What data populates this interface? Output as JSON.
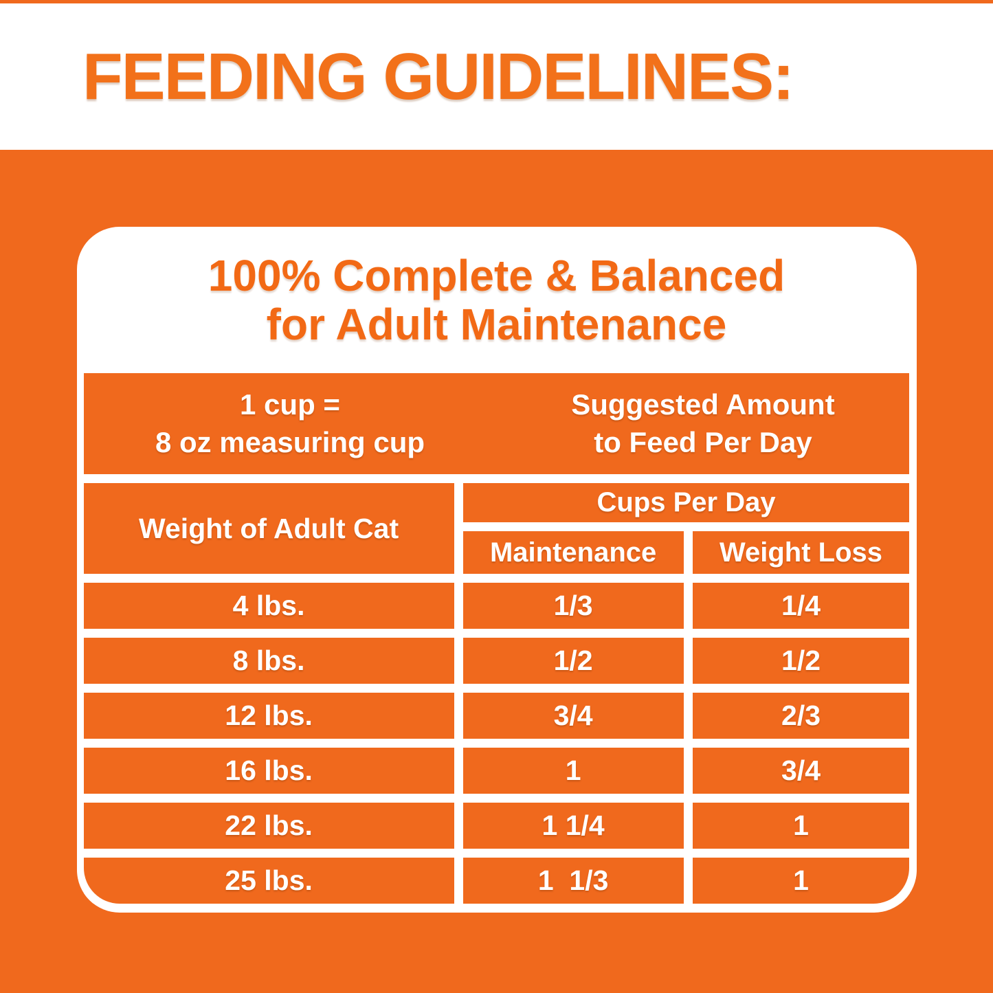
{
  "page": {
    "title": "FEEDING GUIDELINES:"
  },
  "panel": {
    "heading_line1": "100% Complete & Balanced",
    "heading_line2": "for Adult Maintenance",
    "cup_note_line1": "1 cup =",
    "cup_note_line2": "8 oz measuring cup",
    "suggested_line1": "Suggested Amount",
    "suggested_line2": "to Feed Per Day"
  },
  "colors": {
    "orange": "#f0691d",
    "heading_orange": "#f2711a",
    "white": "#ffffff"
  },
  "chart_data": {
    "type": "table",
    "title": "Feeding Guidelines — 100% Complete & Balanced for Adult Maintenance",
    "note": "1 cup = 8 oz measuring cup; Suggested Amount to Feed Per Day",
    "group_header": "Cups Per Day",
    "columns": [
      "Weight of Adult Cat",
      "Maintenance",
      "Weight Loss"
    ],
    "rows": [
      {
        "weight": "4 lbs.",
        "maintenance": "1/3",
        "weight_loss": "1/4"
      },
      {
        "weight": "8 lbs.",
        "maintenance": "1/2",
        "weight_loss": "1/2"
      },
      {
        "weight": "12 lbs.",
        "maintenance": "3/4",
        "weight_loss": "2/3"
      },
      {
        "weight": "16 lbs.",
        "maintenance": "1",
        "weight_loss": "3/4"
      },
      {
        "weight": "22 lbs.",
        "maintenance": "1 1/4",
        "weight_loss": "1"
      },
      {
        "weight": "25 lbs.",
        "maintenance": "1  1/3",
        "weight_loss": "1"
      }
    ]
  }
}
